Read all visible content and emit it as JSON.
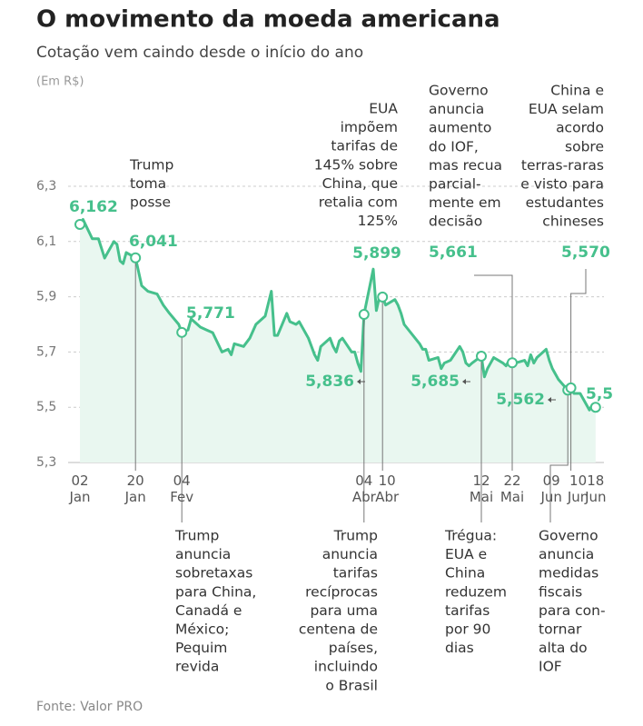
{
  "chart_data": {
    "type": "line",
    "title": "O movimento da moeda americana",
    "subtitle": "Cotação vem caindo desde o início do ano",
    "y_label": "(Em R$)",
    "source": "Fonte: Valor PRO",
    "ylim": [
      5.3,
      6.3
    ],
    "yticks": [
      {
        "value": 5.3,
        "label": "5,3"
      },
      {
        "value": 5.5,
        "label": "5,5"
      },
      {
        "value": 5.7,
        "label": "5,7"
      },
      {
        "value": 5.9,
        "label": "5,9"
      },
      {
        "value": 6.1,
        "label": "6,1"
      },
      {
        "value": 6.3,
        "label": "6,3"
      }
    ],
    "grid": true,
    "xticks": [
      "02 Jan",
      "20 Jan",
      "04 Fev",
      "04 Abr",
      "10 Abr",
      "12 Mai",
      "22 Mai",
      "09 Jun",
      "10 Jun",
      "18 Jun"
    ],
    "x": [
      "02 Jan",
      "03 Jan",
      "06 Jan",
      "08 Jan",
      "10 Jan",
      "13 Jan",
      "14 Jan",
      "15 Jan",
      "16 Jan",
      "17 Jan",
      "20 Jan",
      "22 Jan",
      "24 Jan",
      "27 Jan",
      "29 Jan",
      "31 Jan",
      "03 Fev",
      "04 Fev",
      "06 Fev",
      "07 Fev",
      "10 Fev",
      "12 Fev",
      "14 Fev",
      "17 Fev",
      "19 Fev",
      "20 Fev",
      "21 Fev",
      "24 Fev",
      "26 Fev",
      "28 Fev",
      "03 Mar",
      "05 Mar",
      "06 Mar",
      "07 Mar",
      "10 Mar",
      "11 Mar",
      "13 Mar",
      "14 Mar",
      "17 Mar",
      "19 Mar",
      "20 Mar",
      "21 Mar",
      "24 Mar",
      "25 Mar",
      "26 Mar",
      "27 Mar",
      "28 Mar",
      "31 Mar",
      "01 Abr",
      "02 Abr",
      "03 Abr",
      "04 Abr",
      "07 Abr",
      "08 Abr",
      "09 Abr",
      "10 Abr",
      "11 Abr",
      "14 Abr",
      "15 Abr",
      "16 Abr",
      "17 Abr",
      "22 Abr",
      "23 Abr",
      "24 Abr",
      "25 Abr",
      "28 Abr",
      "29 Abr",
      "30 Abr",
      "02 Mai",
      "05 Mai",
      "06 Mai",
      "07 Mai",
      "08 Mai",
      "09 Mai",
      "12 Mai",
      "13 Mai",
      "14 Mai",
      "15 Mai",
      "16 Mai",
      "19 Mai",
      "20 Mai",
      "21 Mai",
      "22 Mai",
      "23 Mai",
      "26 Mai",
      "27 Mai",
      "28 Mai",
      "29 Mai",
      "30 Mai",
      "02 Jun",
      "03 Jun",
      "04 Jun",
      "05 Jun",
      "06 Jun",
      "09 Jun",
      "10 Jun",
      "11 Jun",
      "12 Jun",
      "13 Jun",
      "16 Jun",
      "17 Jun",
      "18 Jun"
    ],
    "series": [
      {
        "color": "#46c08c",
        "values": [
          6.162,
          6.18,
          6.11,
          6.11,
          6.04,
          6.1,
          6.09,
          6.03,
          6.02,
          6.06,
          6.041,
          5.94,
          5.92,
          5.91,
          5.87,
          5.84,
          5.8,
          5.771,
          5.78,
          5.82,
          5.79,
          5.78,
          5.77,
          5.7,
          5.71,
          5.69,
          5.73,
          5.72,
          5.75,
          5.8,
          5.83,
          5.92,
          5.76,
          5.76,
          5.84,
          5.81,
          5.8,
          5.81,
          5.75,
          5.69,
          5.67,
          5.72,
          5.75,
          5.72,
          5.7,
          5.74,
          5.75,
          5.7,
          5.7,
          5.66,
          5.63,
          5.836,
          6.0,
          5.85,
          5.9,
          5.899,
          5.87,
          5.89,
          5.87,
          5.84,
          5.8,
          5.73,
          5.71,
          5.71,
          5.67,
          5.68,
          5.64,
          5.66,
          5.67,
          5.72,
          5.7,
          5.66,
          5.65,
          5.66,
          5.685,
          5.61,
          5.64,
          5.66,
          5.68,
          5.66,
          5.65,
          5.67,
          5.661,
          5.66,
          5.67,
          5.65,
          5.69,
          5.66,
          5.68,
          5.71,
          5.67,
          5.64,
          5.62,
          5.6,
          5.562,
          5.57,
          5.55,
          5.55,
          5.55,
          5.49,
          5.51,
          5.5
        ]
      }
    ],
    "annotations": [
      {
        "x": "02 Jan",
        "value": 6.162,
        "label": "6,162"
      },
      {
        "x": "20 Jan",
        "value": 6.041,
        "label": "6,041",
        "text": [
          "Trump",
          "toma",
          "posse"
        ]
      },
      {
        "x": "04 Fev",
        "value": 5.771,
        "label": "5,771",
        "text": [
          "Trump",
          "anuncia",
          "sobretaxas",
          "para China,",
          "Canadá e",
          "México;",
          "Pequim",
          "revida"
        ]
      },
      {
        "x": "04 Abr",
        "value": 5.836,
        "label": "5,836",
        "text": [
          "Trump",
          "anuncia",
          "tarifas",
          "recíprocas",
          "para uma",
          "centena de",
          "países,",
          "incluindo",
          "o Brasil"
        ]
      },
      {
        "x": "10 Abr",
        "value": 5.899,
        "label": "5,899",
        "text": [
          "EUA",
          "impõem",
          "tarifas de",
          "145% sobre",
          "China, que",
          "retalia com",
          "125%"
        ]
      },
      {
        "x": "12 Mai",
        "value": 5.685,
        "label": "5,685",
        "text": [
          "Trégua:",
          "EUA e",
          "China",
          "reduzem",
          "tarifas",
          "por 90",
          "dias"
        ]
      },
      {
        "x": "22 Mai",
        "value": 5.661,
        "label": "5,661",
        "text": [
          "Governo",
          "anuncia",
          "aumento",
          "do IOF,",
          "mas recua",
          "parcial-",
          "mente em",
          "decisão"
        ]
      },
      {
        "x": "09 Jun",
        "value": 5.562,
        "label": "5,562",
        "text": [
          "Governo",
          "anuncia",
          "medidas",
          "fiscais",
          "para con-",
          "tornar",
          "alta do",
          "IOF"
        ]
      },
      {
        "x": "10 Jun",
        "value": 5.57,
        "label": "5,570",
        "text": [
          "China e",
          "EUA selam",
          "acordo",
          "sobre",
          "terras-raras",
          "e visto para",
          "estudantes",
          "chineses"
        ]
      },
      {
        "x": "18 Jun",
        "value": 5.5,
        "label": "5,5"
      }
    ]
  }
}
